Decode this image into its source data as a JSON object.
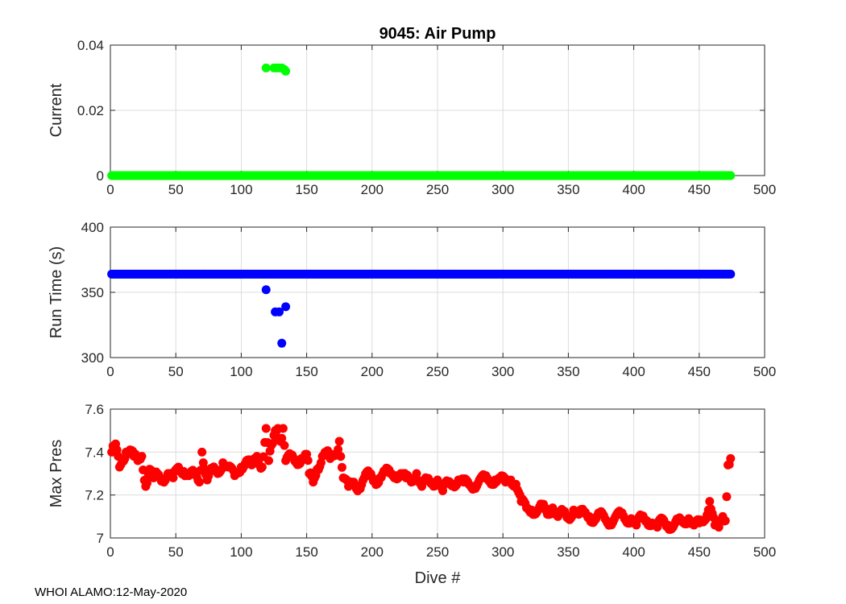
{
  "figure_title": "9045: Air Pump",
  "footer": "WHOI ALAMO:12-May-2020",
  "colors": {
    "current": "#00ff00",
    "runtime": "#0000ff",
    "maxpres": "#ff0000",
    "grid": "#dcdcdc",
    "axis": "#262626"
  },
  "chart_data": [
    {
      "type": "scatter",
      "name": "current",
      "title": "9045: Air Pump",
      "xlabel": "",
      "ylabel": "Current",
      "xlim": [
        0,
        500
      ],
      "ylim": [
        0,
        0.04
      ],
      "xticks": [
        0,
        50,
        100,
        150,
        200,
        250,
        300,
        350,
        400,
        450,
        500
      ],
      "yticks": [
        0,
        0.02,
        0.04
      ],
      "ytick_labels": [
        "0",
        "0.02",
        "0.04"
      ],
      "grid": true,
      "series": [
        {
          "name": "baseline",
          "x_range": [
            1,
            474
          ],
          "y": 0
        },
        {
          "name": "spikes",
          "x": [
            119,
            125,
            127,
            129,
            131,
            133,
            134
          ],
          "y": [
            0.033,
            0.033,
            0.033,
            0.033,
            0.033,
            0.0325,
            0.032
          ]
        }
      ]
    },
    {
      "type": "scatter",
      "name": "runtime",
      "xlabel": "",
      "ylabel": "Run Time (s)",
      "xlim": [
        0,
        500
      ],
      "ylim": [
        300,
        400
      ],
      "xticks": [
        0,
        50,
        100,
        150,
        200,
        250,
        300,
        350,
        400,
        450,
        500
      ],
      "yticks": [
        300,
        350,
        400
      ],
      "ytick_labels": [
        "300",
        "350",
        "400"
      ],
      "grid": true,
      "series": [
        {
          "name": "baseline",
          "x_range": [
            1,
            474
          ],
          "y": 364
        },
        {
          "name": "outliers",
          "x": [
            119,
            126,
            129,
            134,
            131
          ],
          "y": [
            352,
            335,
            335,
            339,
            311
          ]
        }
      ]
    },
    {
      "type": "scatter",
      "name": "maxpres",
      "xlabel": "Dive #",
      "ylabel": "Max Pres",
      "xlim": [
        0,
        500
      ],
      "ylim": [
        7,
        7.6
      ],
      "xticks": [
        0,
        50,
        100,
        150,
        200,
        250,
        300,
        350,
        400,
        450,
        500
      ],
      "yticks": [
        7,
        7.2,
        7.4,
        7.6
      ],
      "ytick_labels": [
        "7",
        "7.2",
        "7.4",
        "7.6"
      ],
      "grid": true,
      "series": [
        {
          "name": "max_pressure",
          "x": [
            1,
            3,
            5,
            7,
            9,
            12,
            15,
            18,
            21,
            24,
            27,
            30,
            33,
            36,
            40,
            44,
            48,
            52,
            56,
            60,
            64,
            68,
            70,
            74,
            78,
            82,
            86,
            90,
            95,
            100,
            104,
            108,
            112,
            116,
            119,
            121,
            124,
            126,
            128,
            130,
            132,
            134,
            138,
            142,
            146,
            150,
            152,
            155,
            158,
            162,
            165,
            168,
            172,
            175,
            178,
            182,
            186,
            190,
            194,
            198,
            202,
            206,
            210,
            214,
            218,
            222,
            226,
            230,
            234,
            238,
            242,
            246,
            250,
            254,
            258,
            262,
            266,
            270,
            274,
            278,
            282,
            286,
            290,
            294,
            298,
            302,
            306,
            310,
            314,
            318,
            322,
            326,
            330,
            334,
            338,
            342,
            346,
            350,
            354,
            358,
            362,
            366,
            370,
            374,
            378,
            382,
            386,
            390,
            394,
            398,
            402,
            406,
            410,
            414,
            418,
            422,
            426,
            430,
            434,
            438,
            442,
            446,
            450,
            454,
            458,
            462,
            465,
            468,
            470,
            472,
            474
          ],
          "y": [
            7.4,
            7.43,
            7.41,
            7.33,
            7.36,
            7.4,
            7.41,
            7.38,
            7.36,
            7.38,
            7.24,
            7.32,
            7.28,
            7.3,
            7.27,
            7.3,
            7.28,
            7.33,
            7.31,
            7.29,
            7.3,
            7.26,
            7.4,
            7.27,
            7.32,
            7.3,
            7.35,
            7.33,
            7.29,
            7.33,
            7.36,
            7.34,
            7.38,
            7.33,
            7.51,
            7.36,
            7.44,
            7.5,
            7.51,
            7.45,
            7.51,
            7.36,
            7.38,
            7.35,
            7.37,
            7.39,
            7.3,
            7.26,
            7.32,
            7.38,
            7.4,
            7.37,
            7.39,
            7.45,
            7.28,
            7.24,
            7.26,
            7.23,
            7.28,
            7.3,
            7.26,
            7.28,
            7.31,
            7.3,
            7.29,
            7.3,
            7.28,
            7.26,
            7.3,
            7.24,
            7.27,
            7.25,
            7.27,
            7.22,
            7.26,
            7.25,
            7.27,
            7.26,
            7.25,
            7.24,
            7.27,
            7.28,
            7.26,
            7.27,
            7.28,
            7.26,
            7.27,
            7.25,
            7.17,
            7.14,
            7.13,
            7.12,
            7.15,
            7.11,
            7.14,
            7.1,
            7.12,
            7.09,
            7.13,
            7.11,
            7.12,
            7.1,
            7.08,
            7.11,
            7.09,
            7.07,
            7.1,
            7.11,
            7.08,
            7.09,
            7.06,
            7.1,
            7.08,
            7.07,
            7.05,
            7.09,
            7.06,
            7.05,
            7.08,
            7.07,
            7.09,
            7.06,
            7.07,
            7.08,
            7.17,
            7.06,
            7.05,
            7.1,
            7.08,
            7.34,
            7.37
          ]
        }
      ]
    }
  ]
}
